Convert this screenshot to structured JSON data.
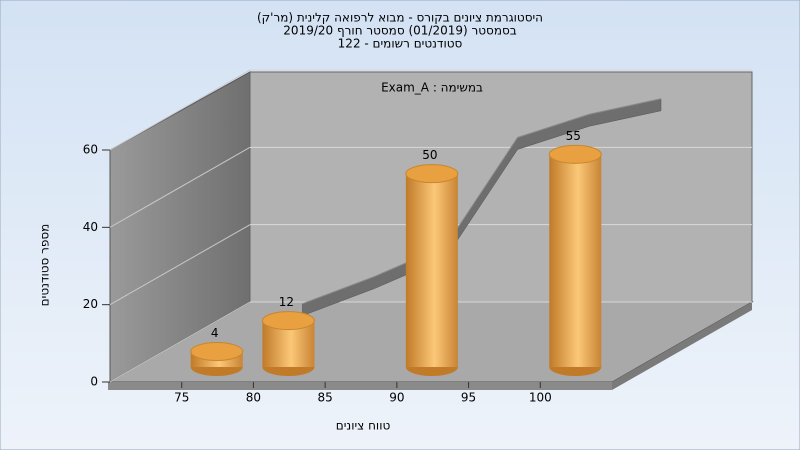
{
  "chart_data": {
    "type": "bar",
    "title": [
      "היסטוגרמת ציונים בקורס - מבוא לרפואה קלינית (מר'ק)",
      "בסמסטר  (01/2019)  סמסטר חורף 2019/20",
      "סטודנטים רשומים - 122"
    ],
    "annotation": "Exam_A : במשימה",
    "x_label": "טווח ציונים",
    "y_label": "מספר סטודנטים",
    "x": [
      75,
      80,
      85,
      90,
      95,
      100
    ],
    "values": [
      4,
      12,
      0,
      50,
      0,
      55
    ],
    "color": "#e8a040",
    "line": {
      "x": [
        80,
        85,
        90,
        95,
        100,
        105
      ],
      "values": [
        13,
        20,
        28,
        56,
        62,
        66
      ],
      "color": "#6e6e6e"
    },
    "xlim": [
      70,
      105
    ],
    "xticks": [
      75,
      80,
      85,
      90,
      95,
      100
    ],
    "ylim": [
      0,
      60
    ],
    "yticks": [
      0,
      20,
      40,
      60
    ],
    "grid": true
  }
}
